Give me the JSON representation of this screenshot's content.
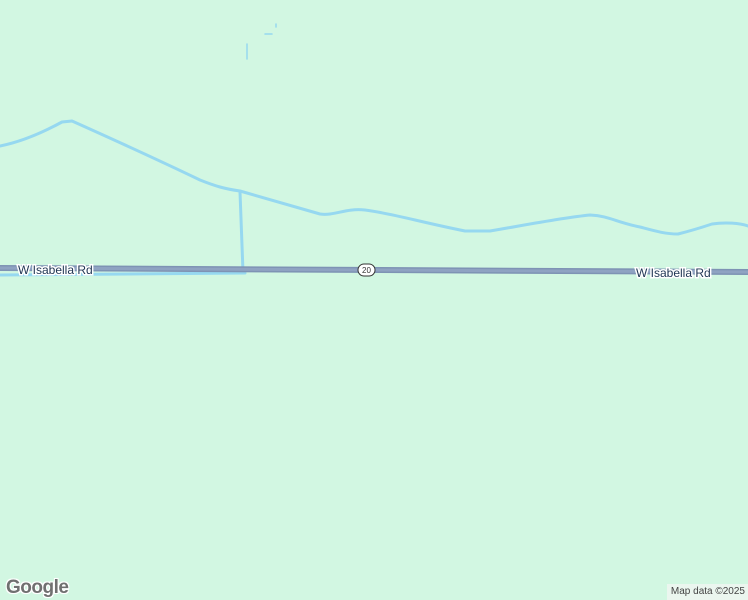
{
  "map": {
    "colors": {
      "land": "#d2f7e2",
      "road": "#8a9dbd",
      "water": "#96d8f0"
    },
    "roads": [
      {
        "name_label": "W Isabella Rd",
        "label_left": "W Isabella Rd",
        "label_right": "W Isabella Rd",
        "route_shield": "20"
      }
    ]
  },
  "footer": {
    "logo_text": "Google",
    "attribution": "Map data ©2025"
  }
}
